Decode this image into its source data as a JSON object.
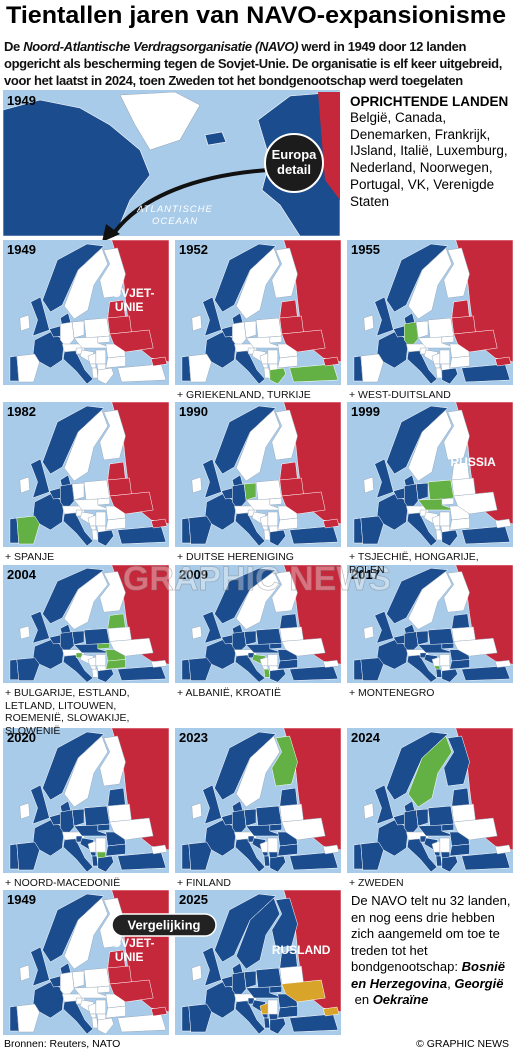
{
  "header": {
    "title": "Tientallen jaren van NAVO-expansionisme",
    "intro_start": "De ",
    "intro_italic": "Noord-Atlantische Verdragsorganisatie (NAVO)",
    "intro_end": " werd in 1949 door 12 landen opgericht als bescherming tegen de Sovjet-Unie. De organisatie is elf keer uitgebreid, voor het laatst in 2024, toen Zweden tot het bondgenootschap werd toegelaten"
  },
  "overview": {
    "year": "1949",
    "ocean": [
      "ATLANTISCHE",
      "OCEAAN"
    ],
    "callout": [
      "Europa",
      "detail"
    ]
  },
  "founders": {
    "heading": "OPRICHTENDE LANDEN",
    "countries": "België, Canada, Denemarken, Frankrijk, IJsland, Italië, Luxemburg, Nederland, Noorwegen, Portugal, VK, Verenigde Staten"
  },
  "panels": [
    {
      "year": "1949",
      "map_label": [
        "SOVJET-",
        "UNIE"
      ]
    },
    {
      "year": "1952",
      "caption": "+ GRIEKENLAND, TURKIJE"
    },
    {
      "year": "1955",
      "caption": "+ WEST-DUITSLAND"
    },
    {
      "year": "1982",
      "caption": "+ SPANJE"
    },
    {
      "year": "1990",
      "caption": "+ DUITSE HERENIGING"
    },
    {
      "year": "1999",
      "caption": "+ TSJECHIË, HONGARIJE, POLEN",
      "map_label": [
        "RUSSIA"
      ]
    },
    {
      "year": "2004",
      "caption": "+  BULGARIJE, ESTLAND, LETLAND, LITOUWEN, ROEMENIË, SLOWAKIJE, SLOWENIË"
    },
    {
      "year": "2009",
      "caption": "+ ALBANIË, KROATIË"
    },
    {
      "year": "2017",
      "caption": "+ MONTENEGRO"
    },
    {
      "year": "2020",
      "caption": "+ NOORD-MACEDONIË"
    },
    {
      "year": "2023",
      "caption": "+ FINLAND"
    },
    {
      "year": "2024",
      "caption": "+ ZWEDEN"
    }
  ],
  "comparison": {
    "badge": "Vergelijking",
    "maps": [
      {
        "year": "1949",
        "map_label": [
          "SOVJET-",
          "UNIE"
        ]
      },
      {
        "year": "2025",
        "map_label": [
          "RUSLAND"
        ]
      }
    ],
    "note_intro": "De NAVO telt nu 32 landen, en nog eens drie hebben zich aangemeld om toe te treden tot het bondgenootschap: ",
    "note_countries": [
      "Bosnië en Herzegovina",
      "Georgië",
      "Oekraïne"
    ],
    "note_separators": [
      ", ",
      " en "
    ]
  },
  "watermark": "GRAPHIC NEWS",
  "footer": {
    "source": "Bronnen: Reuters, NATO",
    "credit": "© GRAPHIC NEWS"
  }
}
